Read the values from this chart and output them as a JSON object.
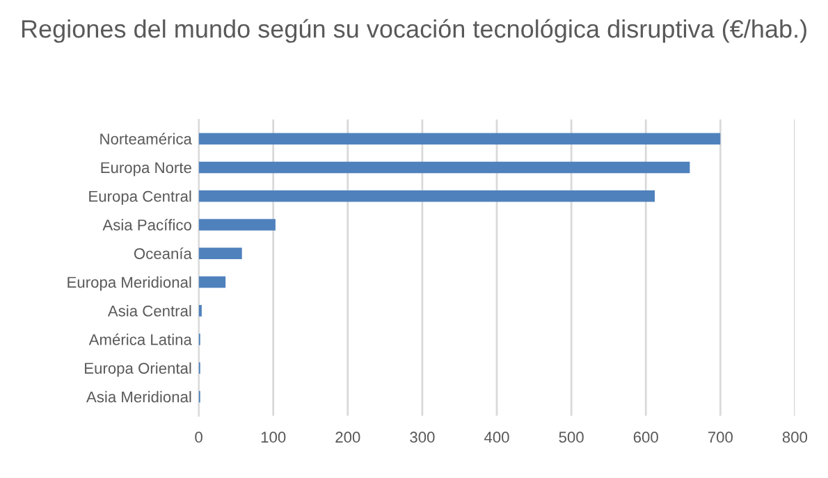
{
  "chart_data": {
    "type": "bar",
    "orientation": "horizontal",
    "title": "Regiones del mundo según su vocación tecnológica disruptiva (€/hab.)",
    "categories": [
      "Norteamérica",
      "Europa Norte",
      "Europa Central",
      "Asia Pacífico",
      "Oceanía",
      "Europa Meridional",
      "Asia Central",
      "América Latina",
      "Europa Oriental",
      "Asia Meridional"
    ],
    "values": [
      700,
      659,
      612,
      103,
      58,
      36,
      4,
      2,
      2,
      2
    ],
    "color": "#4f81bd",
    "xlim": [
      0,
      800
    ],
    "xticks": [
      0,
      100,
      200,
      300,
      400,
      500,
      600,
      700,
      800
    ],
    "grid": "x",
    "legend": false
  }
}
